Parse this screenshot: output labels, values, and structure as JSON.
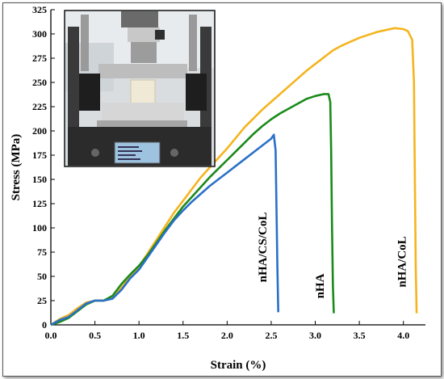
{
  "chart_data": {
    "type": "line",
    "xlabel": "Strain (%)",
    "ylabel": "Stress (MPa)",
    "xlim": [
      0,
      4.25
    ],
    "ylim": [
      0,
      325
    ],
    "x_ticks": [
      0.0,
      0.5,
      1.0,
      1.5,
      2.0,
      2.5,
      3.0,
      3.5,
      4.0
    ],
    "x_tick_labels": [
      "0.0",
      "0.5",
      "1.0",
      "1.5",
      "2.0",
      "2.5",
      "3.0",
      "3.5",
      "4.0"
    ],
    "y_ticks": [
      0,
      25,
      50,
      75,
      100,
      125,
      150,
      175,
      200,
      225,
      250,
      275,
      300,
      325
    ],
    "y_tick_labels": [
      "0",
      "25",
      "50",
      "75",
      "100",
      "125",
      "150",
      "175",
      "200",
      "225",
      "250",
      "275",
      "300",
      "325"
    ],
    "grid": false,
    "legend": "none",
    "series": [
      {
        "name": "nHA/CoL",
        "color": "#f5b41e",
        "points": [
          [
            0,
            0
          ],
          [
            0.1,
            6
          ],
          [
            0.2,
            10
          ],
          [
            0.3,
            17
          ],
          [
            0.4,
            23
          ],
          [
            0.5,
            25
          ],
          [
            0.6,
            25
          ],
          [
            0.7,
            28
          ],
          [
            0.8,
            38
          ],
          [
            0.9,
            50
          ],
          [
            1.0,
            60
          ],
          [
            1.1,
            74
          ],
          [
            1.2,
            88
          ],
          [
            1.3,
            102
          ],
          [
            1.4,
            116
          ],
          [
            1.5,
            128
          ],
          [
            1.6,
            140
          ],
          [
            1.7,
            152
          ],
          [
            1.8,
            162
          ],
          [
            1.9,
            172
          ],
          [
            2.0,
            182
          ],
          [
            2.1,
            193
          ],
          [
            2.2,
            204
          ],
          [
            2.3,
            213
          ],
          [
            2.4,
            222
          ],
          [
            2.5,
            230
          ],
          [
            2.6,
            238
          ],
          [
            2.7,
            246
          ],
          [
            2.8,
            254
          ],
          [
            2.9,
            262
          ],
          [
            3.0,
            269
          ],
          [
            3.1,
            276
          ],
          [
            3.2,
            283
          ],
          [
            3.3,
            288
          ],
          [
            3.4,
            292
          ],
          [
            3.5,
            296
          ],
          [
            3.6,
            299
          ],
          [
            3.7,
            302
          ],
          [
            3.8,
            304
          ],
          [
            3.9,
            306
          ],
          [
            4.0,
            305
          ],
          [
            4.05,
            303
          ],
          [
            4.1,
            294
          ],
          [
            4.12,
            250
          ],
          [
            4.13,
            150
          ],
          [
            4.14,
            60
          ],
          [
            4.15,
            12
          ]
        ]
      },
      {
        "name": "nHA",
        "color": "#1a8a1a",
        "points": [
          [
            0,
            0
          ],
          [
            0.1,
            3
          ],
          [
            0.2,
            7
          ],
          [
            0.3,
            14
          ],
          [
            0.4,
            21
          ],
          [
            0.5,
            25
          ],
          [
            0.6,
            25
          ],
          [
            0.7,
            30
          ],
          [
            0.8,
            42
          ],
          [
            0.9,
            52
          ],
          [
            1.0,
            61
          ],
          [
            1.1,
            72
          ],
          [
            1.2,
            85
          ],
          [
            1.3,
            98
          ],
          [
            1.4,
            110
          ],
          [
            1.5,
            122
          ],
          [
            1.6,
            132
          ],
          [
            1.7,
            142
          ],
          [
            1.8,
            152
          ],
          [
            1.9,
            161
          ],
          [
            2.0,
            170
          ],
          [
            2.1,
            179
          ],
          [
            2.2,
            188
          ],
          [
            2.3,
            197
          ],
          [
            2.4,
            205
          ],
          [
            2.5,
            212
          ],
          [
            2.6,
            218
          ],
          [
            2.7,
            223
          ],
          [
            2.8,
            228
          ],
          [
            2.9,
            233
          ],
          [
            3.0,
            236
          ],
          [
            3.1,
            238
          ],
          [
            3.15,
            238
          ],
          [
            3.17,
            230
          ],
          [
            3.18,
            180
          ],
          [
            3.19,
            100
          ],
          [
            3.2,
            40
          ],
          [
            3.21,
            12
          ]
        ]
      },
      {
        "name": "nHA/CS/CoL",
        "color": "#2a70c8",
        "points": [
          [
            0,
            0
          ],
          [
            0.1,
            5
          ],
          [
            0.2,
            8
          ],
          [
            0.3,
            15
          ],
          [
            0.4,
            22
          ],
          [
            0.5,
            25
          ],
          [
            0.6,
            25
          ],
          [
            0.7,
            27
          ],
          [
            0.8,
            36
          ],
          [
            0.9,
            48
          ],
          [
            1.0,
            57
          ],
          [
            1.1,
            70
          ],
          [
            1.2,
            83
          ],
          [
            1.3,
            96
          ],
          [
            1.4,
            108
          ],
          [
            1.5,
            118
          ],
          [
            1.6,
            127
          ],
          [
            1.7,
            135
          ],
          [
            1.8,
            143
          ],
          [
            1.9,
            150
          ],
          [
            2.0,
            157
          ],
          [
            2.1,
            164
          ],
          [
            2.2,
            171
          ],
          [
            2.3,
            178
          ],
          [
            2.4,
            185
          ],
          [
            2.5,
            192
          ],
          [
            2.53,
            196
          ],
          [
            2.55,
            180
          ],
          [
            2.56,
            120
          ],
          [
            2.57,
            60
          ],
          [
            2.58,
            13
          ]
        ]
      }
    ],
    "annotations": [
      {
        "text": "nHA/CS/CoL",
        "x": 2.4,
        "y": 80
      },
      {
        "text": "nHA",
        "x": 3.05,
        "y": 40
      },
      {
        "text": "nHA/CoL",
        "x": 3.98,
        "y": 65
      }
    ]
  },
  "inset": {
    "description_icon": "tensile-testing-machine-photo",
    "colors": {
      "frame": "#2a2a2a",
      "metal": "#b8b8b8",
      "sample": "#eee8d8",
      "screen": "#8fb8d8"
    }
  }
}
